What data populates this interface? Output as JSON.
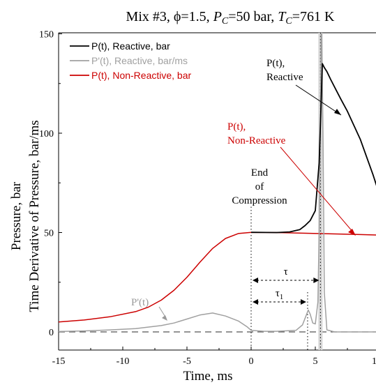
{
  "chart_data": {
    "type": "line",
    "title": {
      "prefix": "Mix #3, ",
      "phi": "ϕ",
      "phi_value": "=1.5, ",
      "pc_var": "P",
      "pc_sub": "C",
      "pc_value": "=50 bar, ",
      "tc_var": "T",
      "tc_sub": "C",
      "tc_value": "=761 K"
    },
    "xlabel": "Time, ms",
    "ylabel_line1": "Pressure, bar",
    "ylabel_line2": "Time Derivative of Pressure, bar/ms",
    "xlim": [
      -15,
      10
    ],
    "ylim": [
      -5,
      150
    ],
    "x_ticks": [
      -15,
      -10,
      -5,
      0,
      5
    ],
    "x_tick_labels": [
      "-15",
      "-10",
      "-5",
      "0",
      "5"
    ],
    "x_tick_partial": "1",
    "y_ticks": [
      0,
      50,
      100,
      150
    ],
    "y_tick_labels": [
      "0",
      "50",
      "100",
      "150"
    ],
    "legend_position": "top-left",
    "legend": [
      {
        "label": "P(t), Reactive, bar",
        "color": "#000000"
      },
      {
        "label": "P'(t), Reactive, bar/ms",
        "color": "#a0a0a0"
      },
      {
        "label": "P(t), Non-Reactive, bar",
        "color": "#cc0000"
      }
    ],
    "series": [
      {
        "name": "P(t), Reactive, bar",
        "color": "#000000",
        "points": [
          [
            0,
            50.1
          ],
          [
            2,
            50
          ],
          [
            3,
            50.3
          ],
          [
            3.8,
            51.5
          ],
          [
            4.2,
            53.5
          ],
          [
            4.6,
            56
          ],
          [
            5.0,
            61
          ],
          [
            5.3,
            85
          ],
          [
            5.45,
            115
          ],
          [
            5.55,
            135
          ],
          [
            5.7,
            133
          ],
          [
            5.9,
            131
          ],
          [
            6.2,
            127
          ],
          [
            6.6,
            122
          ],
          [
            7,
            117
          ],
          [
            7.5,
            111
          ],
          [
            8,
            104
          ],
          [
            8.5,
            97
          ],
          [
            9,
            88
          ],
          [
            9.5,
            79
          ],
          [
            10,
            69
          ]
        ]
      },
      {
        "name": "P'(t), Reactive, bar/ms",
        "color": "#a0a0a0",
        "points": [
          [
            -15,
            0.2
          ],
          [
            -13,
            0.5
          ],
          [
            -11,
            1.0
          ],
          [
            -9,
            1.7
          ],
          [
            -7,
            3.2
          ],
          [
            -6,
            4.5
          ],
          [
            -5,
            6.5
          ],
          [
            -4,
            8.5
          ],
          [
            -3,
            9.5
          ],
          [
            -2,
            8.0
          ],
          [
            -1,
            5.5
          ],
          [
            -0.3,
            2.5
          ],
          [
            0,
            0.8
          ],
          [
            1,
            0.3
          ],
          [
            2,
            0.3
          ],
          [
            3.5,
            0.8
          ],
          [
            4.0,
            3.5
          ],
          [
            4.3,
            8.5
          ],
          [
            4.45,
            11
          ],
          [
            4.6,
            9
          ],
          [
            4.8,
            4.5
          ],
          [
            5.0,
            4
          ],
          [
            5.2,
            15
          ],
          [
            5.3,
            50
          ],
          [
            5.4,
            105
          ],
          [
            5.45,
            150
          ],
          [
            5.5,
            150
          ],
          [
            5.6,
            100
          ],
          [
            5.7,
            20
          ],
          [
            5.9,
            1
          ],
          [
            6.5,
            0
          ],
          [
            10,
            0
          ]
        ]
      },
      {
        "name": "P(t), Non-Reactive, bar",
        "color": "#cc0000",
        "points": [
          [
            -15,
            5
          ],
          [
            -13,
            6
          ],
          [
            -11,
            7.6
          ],
          [
            -9,
            10.2
          ],
          [
            -8,
            12.5
          ],
          [
            -7,
            16
          ],
          [
            -6,
            21
          ],
          [
            -5,
            27.5
          ],
          [
            -4,
            35
          ],
          [
            -3,
            42
          ],
          [
            -2,
            47
          ],
          [
            -1,
            49.5
          ],
          [
            0,
            50.1
          ],
          [
            2,
            50
          ],
          [
            4,
            49.7
          ],
          [
            6,
            49.4
          ],
          [
            8,
            49.1
          ],
          [
            10,
            48.7
          ]
        ]
      }
    ],
    "markers": {
      "end_of_compression_x": 0,
      "ignition_x": 5.4,
      "first_stage_x": 4.4,
      "baseline_y": 0
    },
    "annotations": {
      "reactive_line1": "P(t),",
      "reactive_line2": "Reactive",
      "nonreactive_line1": "P(t),",
      "nonreactive_line2": "Non-Reactive",
      "eoc_line1": "End",
      "eoc_line2": "of",
      "eoc_line3": "Compression",
      "pprime": "P'(t)",
      "tau": "τ",
      "tau1": "τ",
      "tau1_sub": "1"
    }
  }
}
